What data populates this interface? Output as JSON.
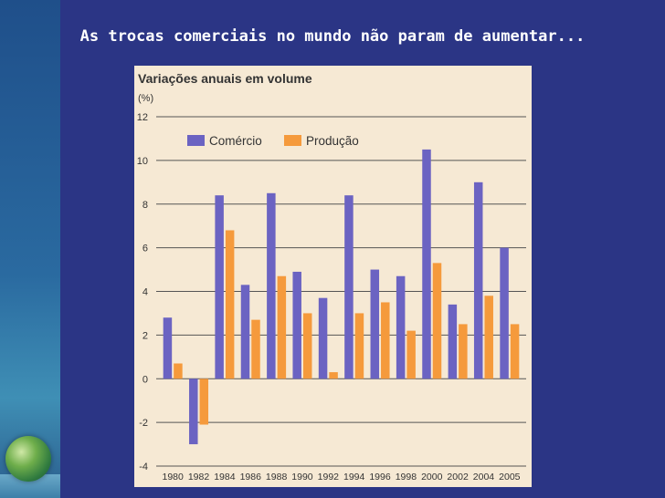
{
  "slide": {
    "title": "As trocas comerciais no mundo não param de aumentar..."
  },
  "chart_data": {
    "type": "bar",
    "title": "Variações anuais em volume",
    "ylabel": "(%)",
    "categories": [
      "1980",
      "1982",
      "1984",
      "1986",
      "1988",
      "1990",
      "1992",
      "1994",
      "1996",
      "1998",
      "2000",
      "2002",
      "2004",
      "2005"
    ],
    "series": [
      {
        "name": "Comércio",
        "color": "#6b63c2",
        "values": [
          2.8,
          -3.0,
          8.4,
          4.3,
          8.5,
          4.9,
          3.7,
          8.4,
          5.0,
          4.7,
          10.5,
          3.4,
          9.0,
          6.0
        ]
      },
      {
        "name": "Produção",
        "color": "#f59a3c",
        "values": [
          0.7,
          -2.1,
          6.8,
          2.7,
          4.7,
          3.0,
          0.3,
          3.0,
          3.5,
          2.2,
          5.3,
          2.5,
          3.8,
          2.5
        ]
      }
    ],
    "ylim": [
      -4,
      12
    ],
    "yticks": [
      -4,
      -2,
      0,
      2,
      4,
      6,
      8,
      10,
      12
    ],
    "grid": true,
    "legend_position": "top-left"
  }
}
